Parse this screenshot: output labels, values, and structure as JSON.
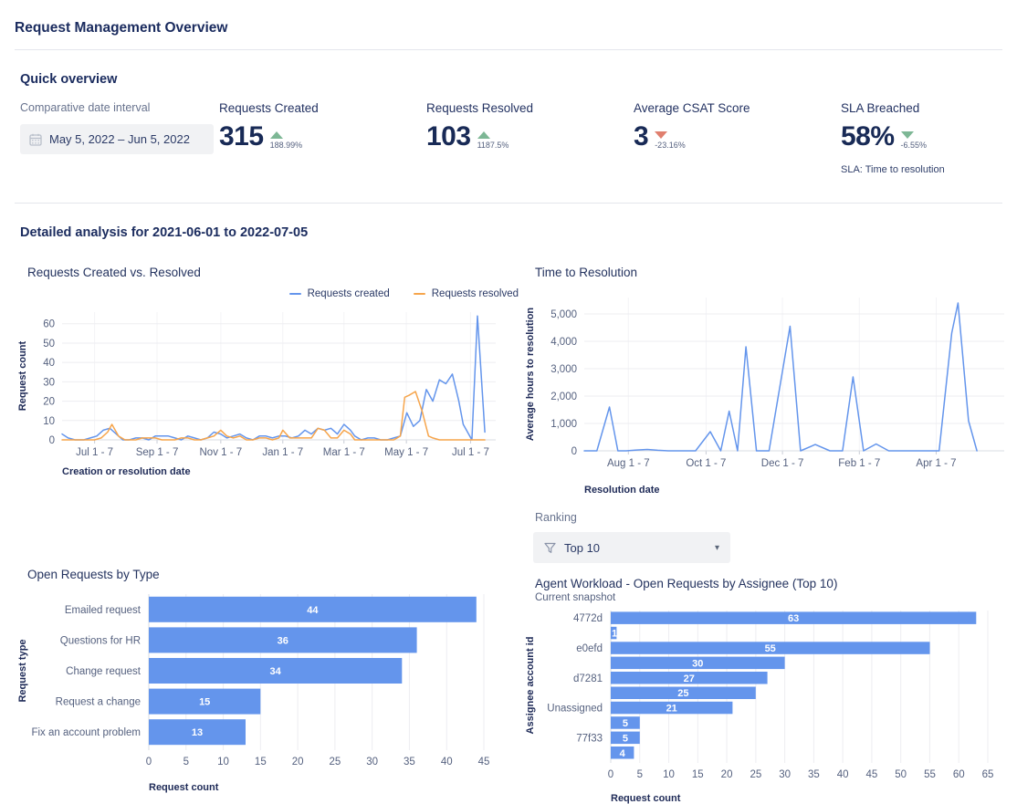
{
  "page": {
    "title": "Request Management Overview"
  },
  "quick_overview": {
    "heading": "Quick overview",
    "interval": {
      "label": "Comparative date interval",
      "icon": "calendar-icon",
      "value": "May 5, 2022  –  Jun 5, 2022"
    },
    "kpis": [
      {
        "label": "Requests Created",
        "value": "315",
        "delta": "188.99%",
        "direction": "up",
        "trend_color": "#7db795"
      },
      {
        "label": "Requests Resolved",
        "value": "103",
        "delta": "1187.5%",
        "direction": "up",
        "trend_color": "#7db795"
      },
      {
        "label": "Average CSAT Score",
        "value": "3",
        "delta": "-23.16%",
        "direction": "down",
        "trend_color": "#e07f6e"
      },
      {
        "label": "SLA Breached",
        "value": "58%",
        "delta": "-6.55%",
        "direction": "down",
        "trend_color": "#7db795",
        "caption": "SLA: Time to resolution"
      }
    ]
  },
  "detailed": {
    "heading": "Detailed analysis for 2021-06-01 to 2022-07-05"
  },
  "ranking": {
    "label": "Ranking",
    "icon": "filter-icon",
    "value": "Top 10"
  },
  "colors": {
    "accent_blue": "#6495ec",
    "accent_orange": "#f6a54c",
    "positive": "#7db795",
    "negative": "#e07f6e"
  },
  "chart_data": [
    {
      "type": "line",
      "title": "Requests Created vs. Resolved",
      "xlabel": "Creation or resolution date",
      "ylabel": "Request count",
      "ylim": [
        0,
        66
      ],
      "yticks": [
        0,
        10,
        20,
        30,
        40,
        50,
        60
      ],
      "grid": true,
      "legend": [
        "Requests created",
        "Requests resolved"
      ],
      "legend_position": "top-right",
      "xticks": [
        {
          "label": "Jul 1 - 7",
          "f": 0.075
        },
        {
          "label": "Sep 1 - 7",
          "f": 0.219
        },
        {
          "label": "Nov 1 - 7",
          "f": 0.366
        },
        {
          "label": "Jan 1 - 7",
          "f": 0.509
        },
        {
          "label": "Mar 1 - 7",
          "f": 0.65
        },
        {
          "label": "May 1 - 7",
          "f": 0.794
        },
        {
          "label": "Jul 1 - 7",
          "f": 0.942
        }
      ],
      "series": [
        {
          "name": "Requests created",
          "color": "#6495ec",
          "points": [
            [
              0,
              3
            ],
            [
              0.014,
              1
            ],
            [
              0.03,
              0
            ],
            [
              0.05,
              0
            ],
            [
              0.065,
              1
            ],
            [
              0.08,
              2
            ],
            [
              0.095,
              5
            ],
            [
              0.11,
              6
            ],
            [
              0.125,
              3
            ],
            [
              0.14,
              0
            ],
            [
              0.155,
              0
            ],
            [
              0.17,
              1
            ],
            [
              0.185,
              1
            ],
            [
              0.2,
              0
            ],
            [
              0.215,
              2
            ],
            [
              0.23,
              2
            ],
            [
              0.245,
              2
            ],
            [
              0.26,
              1
            ],
            [
              0.275,
              0
            ],
            [
              0.29,
              2
            ],
            [
              0.305,
              1
            ],
            [
              0.32,
              0
            ],
            [
              0.335,
              1
            ],
            [
              0.35,
              4
            ],
            [
              0.366,
              3
            ],
            [
              0.38,
              1
            ],
            [
              0.395,
              2
            ],
            [
              0.41,
              3
            ],
            [
              0.425,
              1
            ],
            [
              0.44,
              0
            ],
            [
              0.455,
              2
            ],
            [
              0.47,
              2
            ],
            [
              0.485,
              1
            ],
            [
              0.5,
              2
            ],
            [
              0.515,
              2
            ],
            [
              0.53,
              1
            ],
            [
              0.545,
              2
            ],
            [
              0.56,
              5
            ],
            [
              0.575,
              3
            ],
            [
              0.59,
              6
            ],
            [
              0.605,
              5
            ],
            [
              0.62,
              6
            ],
            [
              0.635,
              3
            ],
            [
              0.65,
              8
            ],
            [
              0.665,
              5
            ],
            [
              0.675,
              2
            ],
            [
              0.69,
              0
            ],
            [
              0.705,
              1
            ],
            [
              0.72,
              1
            ],
            [
              0.735,
              0
            ],
            [
              0.75,
              0
            ],
            [
              0.765,
              1
            ],
            [
              0.78,
              2
            ],
            [
              0.795,
              14
            ],
            [
              0.81,
              7
            ],
            [
              0.825,
              10
            ],
            [
              0.84,
              26
            ],
            [
              0.855,
              20
            ],
            [
              0.87,
              31
            ],
            [
              0.885,
              29
            ],
            [
              0.9,
              34
            ],
            [
              0.915,
              20
            ],
            [
              0.925,
              8
            ],
            [
              0.945,
              0
            ],
            [
              0.958,
              64
            ],
            [
              0.975,
              4
            ]
          ]
        },
        {
          "name": "Requests resolved",
          "color": "#f6a54c",
          "points": [
            [
              0,
              0
            ],
            [
              0.05,
              0
            ],
            [
              0.075,
              0
            ],
            [
              0.09,
              1
            ],
            [
              0.105,
              4
            ],
            [
              0.115,
              8
            ],
            [
              0.13,
              2
            ],
            [
              0.145,
              0
            ],
            [
              0.17,
              0
            ],
            [
              0.185,
              1
            ],
            [
              0.2,
              1
            ],
            [
              0.215,
              1
            ],
            [
              0.23,
              0
            ],
            [
              0.26,
              0
            ],
            [
              0.275,
              1
            ],
            [
              0.29,
              1
            ],
            [
              0.305,
              0
            ],
            [
              0.32,
              0
            ],
            [
              0.335,
              1
            ],
            [
              0.35,
              2
            ],
            [
              0.366,
              5
            ],
            [
              0.38,
              2
            ],
            [
              0.395,
              1
            ],
            [
              0.41,
              2
            ],
            [
              0.425,
              0
            ],
            [
              0.44,
              0
            ],
            [
              0.455,
              1
            ],
            [
              0.47,
              1
            ],
            [
              0.485,
              0
            ],
            [
              0.5,
              1
            ],
            [
              0.509,
              5
            ],
            [
              0.525,
              1
            ],
            [
              0.545,
              1
            ],
            [
              0.56,
              1
            ],
            [
              0.575,
              1
            ],
            [
              0.59,
              6
            ],
            [
              0.605,
              5
            ],
            [
              0.62,
              1
            ],
            [
              0.635,
              1
            ],
            [
              0.65,
              5
            ],
            [
              0.665,
              3
            ],
            [
              0.675,
              0
            ],
            [
              0.69,
              0
            ],
            [
              0.72,
              0
            ],
            [
              0.75,
              0
            ],
            [
              0.765,
              0
            ],
            [
              0.78,
              2
            ],
            [
              0.79,
              22
            ],
            [
              0.8,
              23
            ],
            [
              0.815,
              25
            ],
            [
              0.83,
              15
            ],
            [
              0.845,
              2
            ],
            [
              0.855,
              1
            ],
            [
              0.87,
              0
            ],
            [
              0.9,
              0
            ],
            [
              0.93,
              0
            ],
            [
              0.975,
              0
            ]
          ]
        }
      ]
    },
    {
      "type": "line",
      "title": "Time to Resolution",
      "xlabel": "Resolution date",
      "ylabel": "Average hours to resolution",
      "ylim": [
        0,
        5600
      ],
      "yticks": [
        0,
        1000,
        2000,
        3000,
        4000,
        5000
      ],
      "grid": true,
      "xticks": [
        {
          "label": "Aug 1 - 7",
          "f": 0.105
        },
        {
          "label": "Oct 1 - 7",
          "f": 0.29
        },
        {
          "label": "Dec 1 - 7",
          "f": 0.472
        },
        {
          "label": "Feb 1 - 7",
          "f": 0.655
        },
        {
          "label": "Apr 1 - 7",
          "f": 0.838
        }
      ],
      "series": [
        {
          "name": "Average hours to resolution",
          "color": "#6495ec",
          "points": [
            [
              0,
              0
            ],
            [
              0.03,
              0
            ],
            [
              0.06,
              1600
            ],
            [
              0.08,
              0
            ],
            [
              0.1,
              0
            ],
            [
              0.125,
              30
            ],
            [
              0.15,
              50
            ],
            [
              0.175,
              20
            ],
            [
              0.2,
              0
            ],
            [
              0.23,
              0
            ],
            [
              0.265,
              0
            ],
            [
              0.3,
              700
            ],
            [
              0.325,
              0
            ],
            [
              0.345,
              1450
            ],
            [
              0.365,
              0
            ],
            [
              0.385,
              3800
            ],
            [
              0.41,
              0
            ],
            [
              0.44,
              0
            ],
            [
              0.49,
              4550
            ],
            [
              0.515,
              0
            ],
            [
              0.55,
              230
            ],
            [
              0.585,
              0
            ],
            [
              0.615,
              0
            ],
            [
              0.64,
              2700
            ],
            [
              0.665,
              0
            ],
            [
              0.695,
              250
            ],
            [
              0.725,
              0
            ],
            [
              0.76,
              0
            ],
            [
              0.8,
              0
            ],
            [
              0.845,
              0
            ],
            [
              0.875,
              4300
            ],
            [
              0.89,
              5400
            ],
            [
              0.915,
              1100
            ],
            [
              0.935,
              0
            ]
          ]
        }
      ]
    },
    {
      "type": "bar",
      "title": "Open Requests by Type",
      "xlabel": "Request count",
      "ylabel": "Request type",
      "bar_color": "#6495ec",
      "categories": [
        "Emailed request",
        "Questions for HR",
        "Change request",
        "Request a change",
        "Fix an account problem"
      ],
      "values": [
        44,
        36,
        34,
        15,
        13
      ],
      "xlim": [
        0,
        45
      ],
      "xticks": [
        0,
        5,
        10,
        15,
        20,
        25,
        30,
        35,
        40,
        45
      ]
    },
    {
      "type": "bar",
      "title": "Agent Workload - Open Requests by Assignee (Top 10)",
      "subtitle": "Current snapshot",
      "xlabel": "Request count",
      "ylabel": "Assignee account id",
      "bar_color": "#6495ec",
      "categories": [
        "4772d",
        "",
        "e0efd",
        "",
        "d7281",
        "",
        "Unassigned",
        "",
        "77f33",
        ""
      ],
      "values": [
        63,
        1,
        55,
        30,
        27,
        25,
        21,
        5,
        5,
        4
      ],
      "xlim": [
        0,
        65
      ],
      "xticks": [
        0,
        5,
        10,
        15,
        20,
        25,
        30,
        35,
        40,
        45,
        50,
        55,
        60,
        65
      ]
    }
  ]
}
